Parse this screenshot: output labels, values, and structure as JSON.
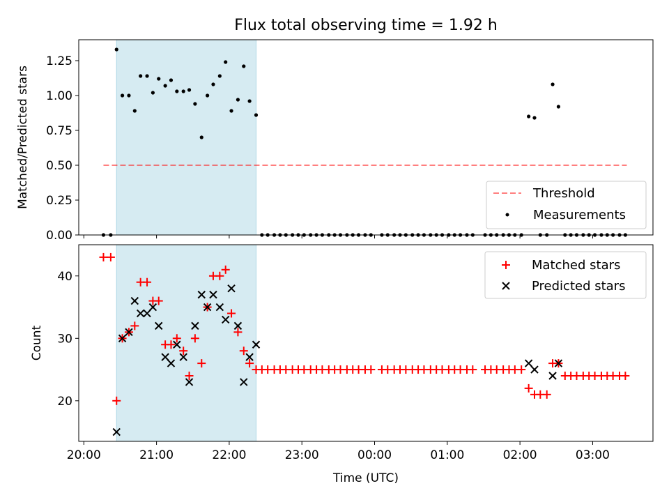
{
  "title": "Flux total observing time = 1.92 h",
  "xlabel": "Time (UTC)",
  "x_tick_labels": [
    "20:00",
    "21:00",
    "22:00",
    "23:00",
    "00:00",
    "01:00",
    "02:00",
    "03:00"
  ],
  "colors": {
    "shade": "#add8e6",
    "threshold": "#ff0000",
    "measurements": "#000000",
    "matched": "#ff0000",
    "predicted": "#000000"
  },
  "chart_data": [
    {
      "type": "scatter",
      "ylabel": "Matched/Predicted stars",
      "x_units": "hours after 20:00 UTC",
      "xlim": [
        -0.07,
        7.83
      ],
      "ylim": [
        0,
        1.4
      ],
      "y_tick_labels": [
        "0.00",
        "0.25",
        "0.50",
        "0.75",
        "1.00",
        "1.25"
      ],
      "y_ticks": [
        0,
        0.25,
        0.5,
        0.75,
        1.0,
        1.25
      ],
      "shaded_span": [
        0.45,
        2.37
      ],
      "threshold": {
        "name": "Threshold",
        "y": 0.5,
        "x_range": [
          0.27,
          7.47
        ],
        "style": "dashed"
      },
      "legend": {
        "position": "lower right",
        "entries": [
          "Threshold",
          "Measurements"
        ]
      },
      "series": [
        {
          "name": "Measurements",
          "points": [
            [
              0.27,
              0
            ],
            [
              0.37,
              0
            ],
            [
              0.45,
              1.33
            ],
            [
              0.53,
              1.0
            ],
            [
              0.62,
              1.0
            ],
            [
              0.7,
              0.89
            ],
            [
              0.78,
              1.14
            ],
            [
              0.87,
              1.14
            ],
            [
              0.95,
              1.02
            ],
            [
              1.03,
              1.12
            ],
            [
              1.12,
              1.07
            ],
            [
              1.2,
              1.11
            ],
            [
              1.28,
              1.03
            ],
            [
              1.37,
              1.03
            ],
            [
              1.45,
              1.04
            ],
            [
              1.53,
              0.94
            ],
            [
              1.62,
              0.7
            ],
            [
              1.7,
              1.0
            ],
            [
              1.78,
              1.08
            ],
            [
              1.87,
              1.14
            ],
            [
              1.95,
              1.24
            ],
            [
              2.03,
              0.89
            ],
            [
              2.12,
              0.97
            ],
            [
              2.2,
              1.21
            ],
            [
              2.28,
              0.96
            ],
            [
              2.37,
              0.86
            ],
            [
              2.45,
              0
            ],
            [
              2.53,
              0
            ],
            [
              2.62,
              0
            ],
            [
              2.7,
              0
            ],
            [
              2.78,
              0
            ],
            [
              2.87,
              0
            ],
            [
              2.95,
              0
            ],
            [
              3.03,
              0
            ],
            [
              3.12,
              0
            ],
            [
              3.2,
              0
            ],
            [
              3.28,
              0
            ],
            [
              3.37,
              0
            ],
            [
              3.45,
              0
            ],
            [
              3.53,
              0
            ],
            [
              3.62,
              0
            ],
            [
              3.7,
              0
            ],
            [
              3.78,
              0
            ],
            [
              3.87,
              0
            ],
            [
              3.95,
              0
            ],
            [
              4.1,
              0
            ],
            [
              4.18,
              0
            ],
            [
              4.27,
              0
            ],
            [
              4.35,
              0
            ],
            [
              4.43,
              0
            ],
            [
              4.52,
              0
            ],
            [
              4.6,
              0
            ],
            [
              4.68,
              0
            ],
            [
              4.77,
              0
            ],
            [
              4.85,
              0
            ],
            [
              4.93,
              0
            ],
            [
              5.02,
              0
            ],
            [
              5.1,
              0
            ],
            [
              5.18,
              0
            ],
            [
              5.27,
              0
            ],
            [
              5.35,
              0
            ],
            [
              5.52,
              0
            ],
            [
              5.6,
              0
            ],
            [
              5.68,
              0
            ],
            [
              5.77,
              0
            ],
            [
              5.85,
              0
            ],
            [
              5.93,
              0
            ],
            [
              6.02,
              0
            ],
            [
              6.12,
              0.85
            ],
            [
              6.2,
              0.84
            ],
            [
              6.28,
              0
            ],
            [
              6.37,
              0
            ],
            [
              6.45,
              1.08
            ],
            [
              6.53,
              0.92
            ],
            [
              6.62,
              0
            ],
            [
              6.7,
              0
            ],
            [
              6.78,
              0
            ],
            [
              6.87,
              0
            ],
            [
              6.95,
              0
            ],
            [
              7.03,
              0
            ],
            [
              7.12,
              0
            ],
            [
              7.2,
              0
            ],
            [
              7.28,
              0
            ],
            [
              7.37,
              0
            ],
            [
              7.45,
              0
            ]
          ]
        }
      ]
    },
    {
      "type": "scatter",
      "ylabel": "Count",
      "x_units": "hours after 20:00 UTC",
      "xlim": [
        -0.07,
        7.83
      ],
      "ylim": [
        13.5,
        45
      ],
      "y_tick_labels": [
        "20",
        "30",
        "40"
      ],
      "y_ticks": [
        20,
        30,
        40
      ],
      "shaded_span": [
        0.45,
        2.37
      ],
      "legend": {
        "position": "upper right",
        "entries": [
          "Matched stars",
          "Predicted stars"
        ]
      },
      "series": [
        {
          "name": "Matched stars",
          "marker": "plus",
          "points": [
            [
              0.27,
              43
            ],
            [
              0.37,
              43
            ],
            [
              0.45,
              20
            ],
            [
              0.53,
              30
            ],
            [
              0.62,
              31
            ],
            [
              0.7,
              32
            ],
            [
              0.78,
              39
            ],
            [
              0.87,
              39
            ],
            [
              0.95,
              36
            ],
            [
              1.03,
              36
            ],
            [
              1.12,
              29
            ],
            [
              1.2,
              29
            ],
            [
              1.28,
              30
            ],
            [
              1.37,
              28
            ],
            [
              1.45,
              24
            ],
            [
              1.53,
              30
            ],
            [
              1.62,
              26
            ],
            [
              1.7,
              35
            ],
            [
              1.78,
              40
            ],
            [
              1.87,
              40
            ],
            [
              1.95,
              41
            ],
            [
              2.03,
              34
            ],
            [
              2.12,
              31
            ],
            [
              2.2,
              28
            ],
            [
              2.28,
              26
            ],
            [
              2.37,
              25
            ],
            [
              2.45,
              25
            ],
            [
              2.53,
              25
            ],
            [
              2.62,
              25
            ],
            [
              2.7,
              25
            ],
            [
              2.78,
              25
            ],
            [
              2.87,
              25
            ],
            [
              2.95,
              25
            ],
            [
              3.03,
              25
            ],
            [
              3.12,
              25
            ],
            [
              3.2,
              25
            ],
            [
              3.28,
              25
            ],
            [
              3.37,
              25
            ],
            [
              3.45,
              25
            ],
            [
              3.53,
              25
            ],
            [
              3.62,
              25
            ],
            [
              3.7,
              25
            ],
            [
              3.78,
              25
            ],
            [
              3.87,
              25
            ],
            [
              3.95,
              25
            ],
            [
              4.1,
              25
            ],
            [
              4.18,
              25
            ],
            [
              4.27,
              25
            ],
            [
              4.35,
              25
            ],
            [
              4.43,
              25
            ],
            [
              4.52,
              25
            ],
            [
              4.6,
              25
            ],
            [
              4.68,
              25
            ],
            [
              4.77,
              25
            ],
            [
              4.85,
              25
            ],
            [
              4.93,
              25
            ],
            [
              5.02,
              25
            ],
            [
              5.1,
              25
            ],
            [
              5.18,
              25
            ],
            [
              5.27,
              25
            ],
            [
              5.35,
              25
            ],
            [
              5.52,
              25
            ],
            [
              5.6,
              25
            ],
            [
              5.68,
              25
            ],
            [
              5.77,
              25
            ],
            [
              5.85,
              25
            ],
            [
              5.93,
              25
            ],
            [
              6.02,
              25
            ],
            [
              6.12,
              22
            ],
            [
              6.2,
              21
            ],
            [
              6.28,
              21
            ],
            [
              6.37,
              21
            ],
            [
              6.45,
              26
            ],
            [
              6.53,
              26
            ],
            [
              6.62,
              24
            ],
            [
              6.7,
              24
            ],
            [
              6.78,
              24
            ],
            [
              6.87,
              24
            ],
            [
              6.95,
              24
            ],
            [
              7.03,
              24
            ],
            [
              7.12,
              24
            ],
            [
              7.2,
              24
            ],
            [
              7.28,
              24
            ],
            [
              7.37,
              24
            ],
            [
              7.45,
              24
            ]
          ]
        },
        {
          "name": "Predicted stars",
          "marker": "x",
          "points": [
            [
              0.45,
              15
            ],
            [
              0.53,
              30
            ],
            [
              0.62,
              31
            ],
            [
              0.7,
              36
            ],
            [
              0.78,
              34
            ],
            [
              0.87,
              34
            ],
            [
              0.95,
              35
            ],
            [
              1.03,
              32
            ],
            [
              1.12,
              27
            ],
            [
              1.2,
              26
            ],
            [
              1.28,
              29
            ],
            [
              1.37,
              27
            ],
            [
              1.45,
              23
            ],
            [
              1.53,
              32
            ],
            [
              1.62,
              37
            ],
            [
              1.7,
              35
            ],
            [
              1.78,
              37
            ],
            [
              1.87,
              35
            ],
            [
              1.95,
              33
            ],
            [
              2.03,
              38
            ],
            [
              2.12,
              32
            ],
            [
              2.2,
              23
            ],
            [
              2.28,
              27
            ],
            [
              2.37,
              29
            ],
            [
              6.12,
              26
            ],
            [
              6.2,
              25
            ],
            [
              6.45,
              24
            ],
            [
              6.53,
              26
            ]
          ]
        }
      ]
    }
  ]
}
